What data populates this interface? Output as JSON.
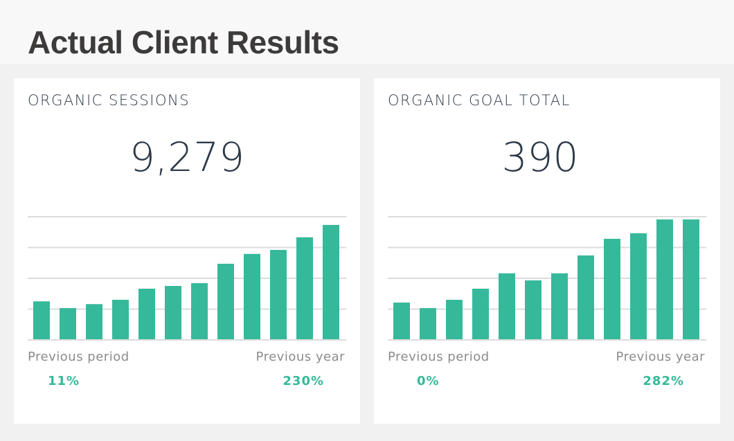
{
  "header": {
    "title": "Actual Client Results"
  },
  "colors": {
    "bar": "#36b99a",
    "grid": "#dcdcdc",
    "accent": "#36b99a"
  },
  "panels": [
    {
      "title": "ORGANIC SESSIONS",
      "value": "9,279",
      "prev_period_label": "Previous period",
      "prev_period": "11%",
      "prev_year_label": "Previous year",
      "prev_year": "230%"
    },
    {
      "title": "ORGANIC GOAL TOTAL",
      "value": "390",
      "prev_period_label": "Previous period",
      "prev_period": "0%",
      "prev_year_label": "Previous year",
      "prev_year": "282%"
    }
  ],
  "chart_data": [
    {
      "type": "bar",
      "title": "",
      "xlabel": "",
      "ylabel": "",
      "ylim": [
        0,
        4
      ],
      "grid": true,
      "gridlines": 4,
      "values": [
        1.23,
        1.01,
        1.14,
        1.28,
        1.64,
        1.73,
        1.82,
        2.45,
        2.77,
        2.9,
        3.31,
        3.71
      ]
    },
    {
      "type": "bar",
      "title": "",
      "xlabel": "",
      "ylabel": "",
      "ylim": [
        0,
        4
      ],
      "grid": true,
      "gridlines": 4,
      "values": [
        1.19,
        1.01,
        1.28,
        1.64,
        2.14,
        1.91,
        2.14,
        2.72,
        3.26,
        3.44,
        3.89,
        3.89
      ]
    }
  ]
}
